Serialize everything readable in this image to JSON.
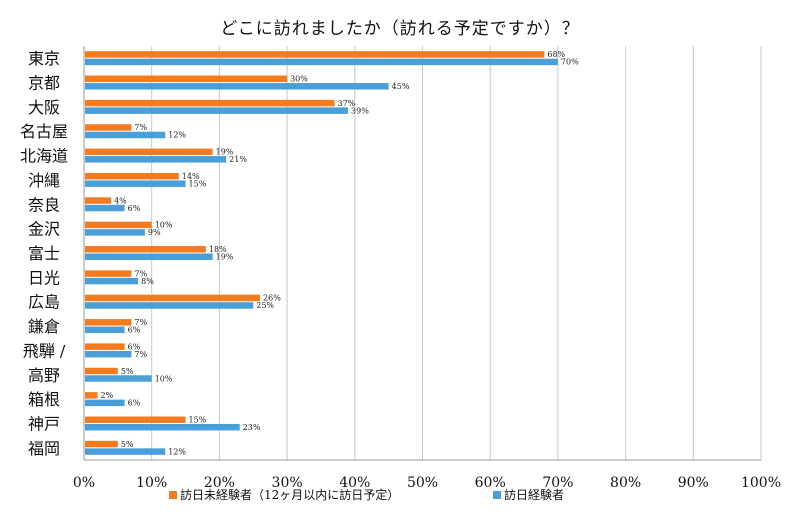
{
  "chart_data": {
    "type": "bar",
    "orientation": "horizontal",
    "title": "どこに訪れましたか（訪れる予定ですか）？",
    "xlim": [
      0,
      100
    ],
    "x_tick_labels": [
      "0%",
      "10%",
      "20%",
      "30%",
      "40%",
      "50%",
      "60%",
      "70%",
      "80%",
      "90%",
      "100%"
    ],
    "grid": true,
    "legend_position": "bottom",
    "categories": [
      "東京",
      "京都",
      "大阪",
      "名古屋",
      "北海道",
      "沖縄",
      "奈良",
      "金沢",
      "富士",
      "日光",
      "広島",
      "鎌倉",
      "飛騨 /",
      "高野",
      "箱根",
      "神戸",
      "福岡"
    ],
    "series": [
      {
        "name": "訪日未経験者（12ヶ月以内に訪日予定）",
        "color": "#F47B20",
        "values": [
          68,
          30,
          37,
          7,
          19,
          14,
          4,
          10,
          18,
          7,
          26,
          7,
          6,
          5,
          2,
          15,
          5
        ]
      },
      {
        "name": "訪日経験者",
        "color": "#4A9FD8",
        "values": [
          70,
          45,
          39,
          12,
          21,
          15,
          6,
          9,
          19,
          8,
          25,
          6,
          7,
          10,
          6,
          23,
          12
        ]
      }
    ]
  }
}
